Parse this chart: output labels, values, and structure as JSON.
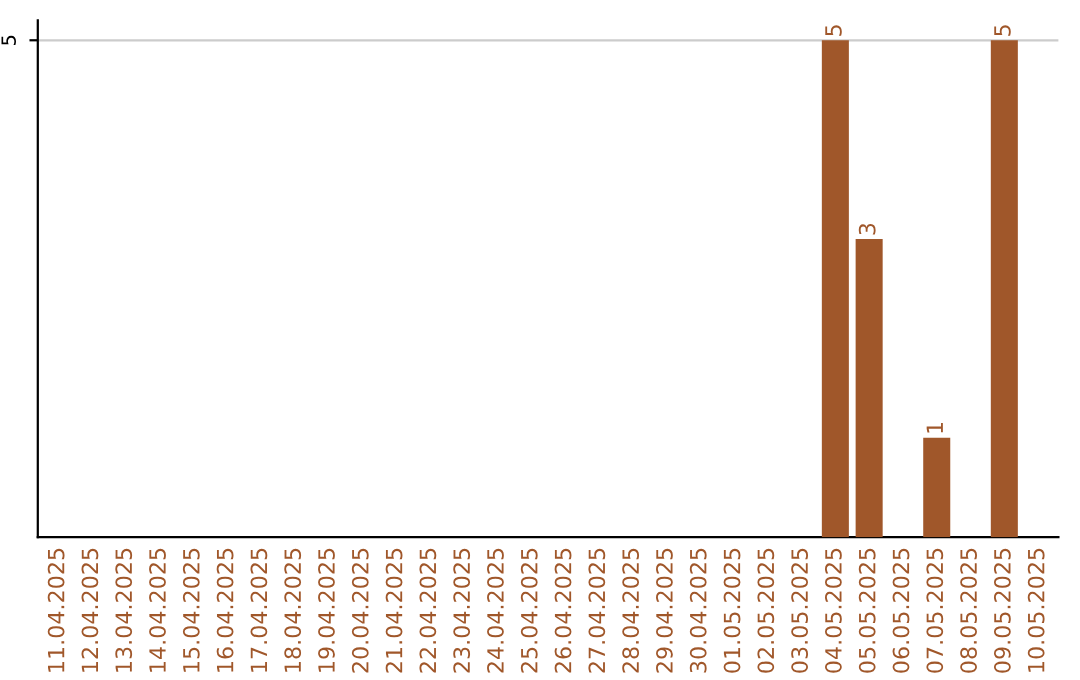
{
  "chart_data": {
    "type": "bar",
    "categories": [
      "11.04.2025",
      "12.04.2025",
      "13.04.2025",
      "14.04.2025",
      "15.04.2025",
      "16.04.2025",
      "17.04.2025",
      "18.04.2025",
      "19.04.2025",
      "20.04.2025",
      "21.04.2025",
      "22.04.2025",
      "23.04.2025",
      "24.04.2025",
      "25.04.2025",
      "26.04.2025",
      "27.04.2025",
      "28.04.2025",
      "29.04.2025",
      "30.04.2025",
      "01.05.2025",
      "02.05.2025",
      "03.05.2025",
      "04.05.2025",
      "05.05.2025",
      "06.05.2025",
      "07.05.2025",
      "08.05.2025",
      "09.05.2025",
      "10.05.2025"
    ],
    "values": [
      null,
      null,
      null,
      null,
      null,
      null,
      null,
      null,
      null,
      null,
      null,
      null,
      null,
      null,
      null,
      null,
      null,
      null,
      null,
      null,
      null,
      null,
      null,
      5,
      3,
      null,
      1,
      null,
      5,
      null
    ],
    "data_labels": true,
    "color": "#a0572a",
    "ylim": [
      0,
      5.2
    ],
    "yticks": [
      5
    ],
    "grid": "y"
  }
}
